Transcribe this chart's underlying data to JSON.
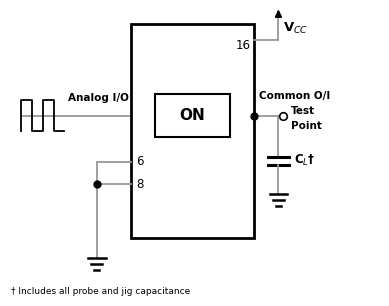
{
  "bg_color": "#ffffff",
  "line_color": "#999999",
  "text_color": "#000000",
  "box_color": "#000000",
  "fig_width": 3.89,
  "fig_height": 3.06,
  "dpi": 100,
  "vcc_label": "V$_{CC}$",
  "common_label": "Common O/I",
  "analog_label": "Analog I/O",
  "on_label": "ON",
  "pin16_label": "16",
  "pin6_label": "6",
  "pin8_label": "8",
  "cl_label": "C$_L$†",
  "test_label1": "Test",
  "test_label2": "Point",
  "footnote": "† Includes all probe and jig capacitance"
}
